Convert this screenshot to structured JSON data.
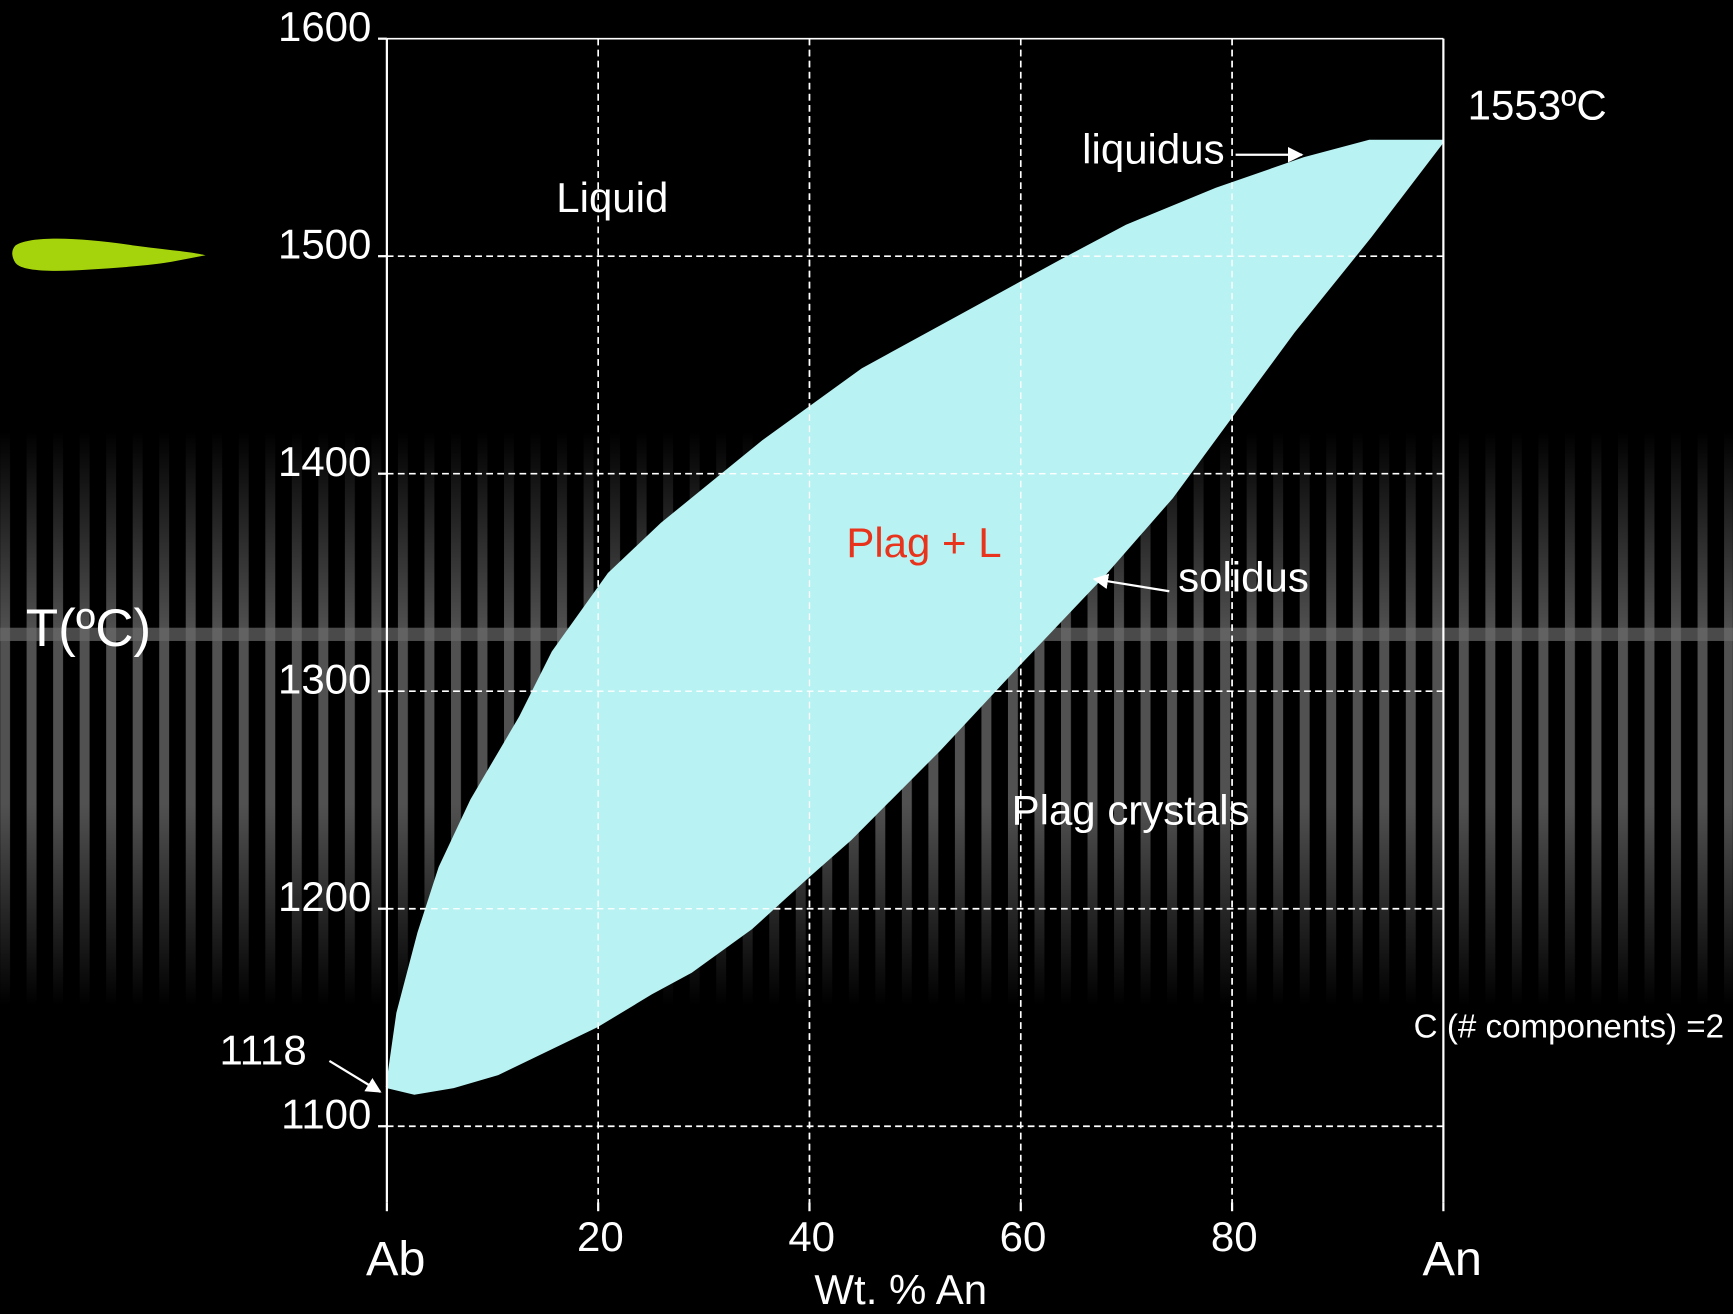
{
  "chart_data": {
    "type": "phase-diagram",
    "x_label": "Wt. % An",
    "y_label": "T(ºC)",
    "xlim": [
      0,
      100
    ],
    "ylim": [
      1065,
      1600
    ],
    "xticks": [
      {
        "value": 0,
        "label": "Ab"
      },
      20,
      40,
      60,
      80,
      {
        "value": 100,
        "label": "An"
      }
    ],
    "yticks": [
      1100,
      1200,
      1300,
      1400,
      1500,
      1600
    ],
    "grid": true,
    "fill_color": "#b9f2f2",
    "series": [
      {
        "name": "liquidus",
        "x": [
          0,
          1,
          3,
          5,
          8,
          12.6,
          15.7,
          21,
          26,
          35.6,
          45,
          54.4,
          63.8,
          70,
          78.5,
          86.8,
          93,
          100
        ],
        "values": [
          1118,
          1152,
          1189,
          1219,
          1250,
          1288,
          1318,
          1354,
          1377,
          1415,
          1448,
          1473,
          1498,
          1514,
          1531,
          1545,
          1553,
          1553
        ]
      },
      {
        "name": "solidus",
        "x": [
          0,
          2.6,
          6.3,
          10.5,
          19.9,
          25,
          28.8,
          34.5,
          39.7,
          43.9,
          52.3,
          59.6,
          68,
          74.3,
          80.5,
          85.8,
          93.1,
          100
        ],
        "values": [
          1118,
          1115,
          1118,
          1124,
          1146,
          1161,
          1171,
          1191,
          1214,
          1232,
          1273,
          1311,
          1354,
          1389,
          1430,
          1465,
          1509,
          1553
        ]
      }
    ],
    "annotations": {
      "liquid": "Liquid",
      "plag_l": "Plag + L",
      "plag_crystals": "Plag crystals",
      "an_melt": "1553ºC",
      "ab_melt": "1118",
      "components": "C (# components) =2"
    }
  }
}
